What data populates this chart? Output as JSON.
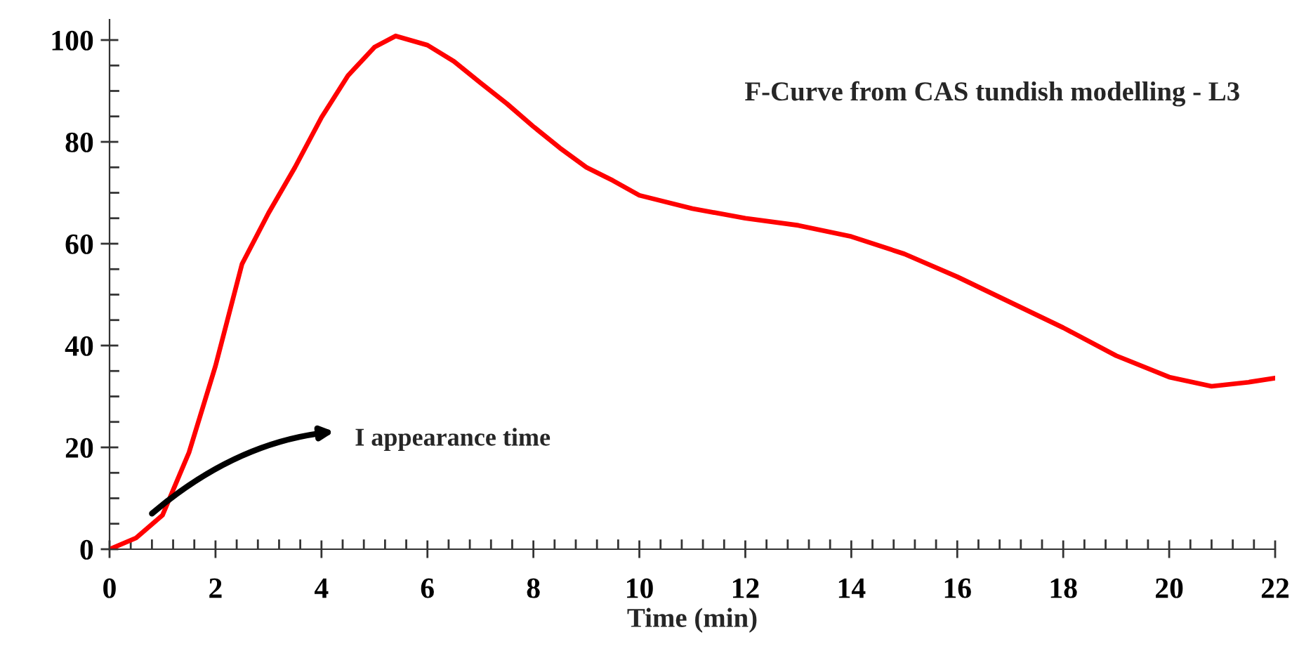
{
  "chart_data": {
    "type": "line",
    "title": "F-Curve from CAS tundish modelling - L3",
    "xlabel": "Time (min)",
    "x": [
      0,
      0.5,
      1,
      1.5,
      2,
      2.5,
      3,
      3.5,
      4,
      4.5,
      5,
      5.4,
      6,
      6.5,
      7,
      7.5,
      8,
      8.5,
      9,
      9.5,
      10,
      11,
      12,
      13,
      14,
      15,
      16,
      17,
      18,
      19,
      20,
      20.8,
      21.5,
      22
    ],
    "series": [
      {
        "color": "#ff0000",
        "values": [
          0,
          2.2,
          6.7,
          19,
          36,
          56,
          66,
          75,
          84.8,
          93,
          98.6,
          100.8,
          99,
          95.8,
          91.6,
          87.5,
          83,
          78.8,
          75,
          72.4,
          69.5,
          66.9,
          65,
          63.6,
          61.4,
          58,
          53.5,
          48.5,
          43.5,
          38,
          33.8,
          32,
          32.8,
          33.6
        ]
      }
    ],
    "annotations": [
      {
        "text": "I appearance time",
        "x": 0.8,
        "y": 7
      }
    ],
    "xlim": [
      0,
      22
    ],
    "ylim": [
      0,
      104
    ],
    "xticks": [
      0,
      {
        "value": 0.4,
        "label": null
      },
      {
        "value": 0.8,
        "label": null
      },
      {
        "value": 1.2,
        "label": null
      },
      {
        "value": 1.6,
        "label": null
      },
      2,
      {
        "value": 2.4,
        "label": null
      },
      {
        "value": 2.8,
        "label": null
      },
      {
        "value": 3.2,
        "label": null
      },
      {
        "value": 3.6,
        "label": null
      },
      4,
      {
        "value": 4.4,
        "label": null
      },
      {
        "value": 4.8,
        "label": null
      },
      {
        "value": 5.2,
        "label": null
      },
      {
        "value": 5.6,
        "label": null
      },
      6,
      {
        "value": 6.4,
        "label": null
      },
      {
        "value": 6.8,
        "label": null
      },
      {
        "value": 7.2,
        "label": null
      },
      {
        "value": 7.6,
        "label": null
      },
      8,
      {
        "value": 8.4,
        "label": null
      },
      {
        "value": 8.8,
        "label": null
      },
      {
        "value": 9.2,
        "label": null
      },
      {
        "value": 9.6,
        "label": null
      },
      10,
      {
        "value": 10.4,
        "label": null
      },
      {
        "value": 10.8,
        "label": null
      },
      {
        "value": 11.2,
        "label": null
      },
      {
        "value": 11.6,
        "label": null
      },
      12,
      {
        "value": 12.4,
        "label": null
      },
      {
        "value": 12.8,
        "label": null
      },
      {
        "value": 13.2,
        "label": null
      },
      {
        "value": 13.6,
        "label": null
      },
      14,
      {
        "value": 14.4,
        "label": null
      },
      {
        "value": 14.8,
        "label": null
      },
      {
        "value": 15.2,
        "label": null
      },
      {
        "value": 15.6,
        "label": null
      },
      16,
      {
        "value": 16.4,
        "label": null
      },
      {
        "value": 16.8,
        "label": null
      },
      {
        "value": 17.2,
        "label": null
      },
      {
        "value": 17.6,
        "label": null
      },
      18,
      {
        "value": 18.4,
        "label": null
      },
      {
        "value": 18.8,
        "label": null
      },
      {
        "value": 19.2,
        "label": null
      },
      {
        "value": 19.6,
        "label": null
      },
      20,
      {
        "value": 20.4,
        "label": null
      },
      {
        "value": 20.8,
        "label": null
      },
      {
        "value": 21.2,
        "label": null
      },
      {
        "value": 21.6,
        "label": null
      },
      22
    ],
    "yticks": [
      0,
      {
        "value": 5,
        "label": null
      },
      {
        "value": 10,
        "label": null
      },
      {
        "value": 15,
        "label": null
      },
      20,
      {
        "value": 25,
        "label": null
      },
      {
        "value": 30,
        "label": null
      },
      {
        "value": 35,
        "label": null
      },
      40,
      {
        "value": 45,
        "label": null
      },
      {
        "value": 50,
        "label": null
      },
      {
        "value": 55,
        "label": null
      },
      60,
      {
        "value": 65,
        "label": null
      },
      {
        "value": 70,
        "label": null
      },
      {
        "value": 75,
        "label": null
      },
      80,
      {
        "value": 85,
        "label": null
      },
      {
        "value": 90,
        "label": null
      },
      {
        "value": 95,
        "label": null
      },
      100
    ],
    "marker": "none",
    "line_style": "solid"
  }
}
